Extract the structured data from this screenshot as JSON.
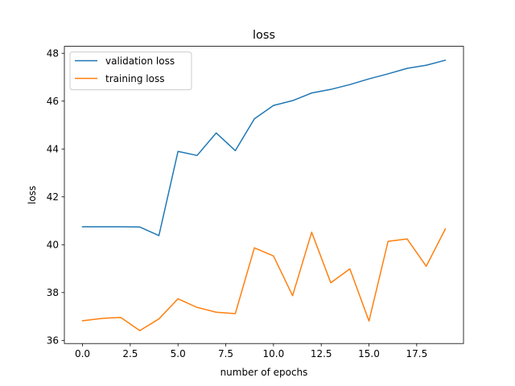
{
  "chart_data": {
    "type": "line",
    "title": "loss",
    "xlabel": "number of epochs",
    "ylabel": "loss",
    "x": [
      0,
      1,
      2,
      3,
      4,
      5,
      6,
      7,
      8,
      9,
      10,
      11,
      12,
      13,
      14,
      15,
      16,
      17,
      18,
      19
    ],
    "xlim": [
      -0.95,
      19.95
    ],
    "ylim": [
      35.87,
      48.29
    ],
    "xticks": [
      0,
      2.5,
      5,
      7.5,
      10,
      12.5,
      15,
      17.5
    ],
    "xtick_labels": [
      "0.0",
      "2.5",
      "5.0",
      "7.5",
      "10.0",
      "12.5",
      "15.0",
      "17.5"
    ],
    "yticks": [
      36,
      38,
      40,
      42,
      44,
      46,
      48
    ],
    "ytick_labels": [
      "36",
      "38",
      "40",
      "42",
      "44",
      "46",
      "48"
    ],
    "grid": false,
    "legend_position": "top-left",
    "series": [
      {
        "name": "validation loss",
        "color": "#1f77b4",
        "values": [
          40.75,
          40.75,
          40.75,
          40.74,
          40.38,
          43.9,
          43.73,
          44.67,
          43.93,
          45.26,
          45.82,
          46.02,
          46.34,
          46.49,
          46.69,
          46.93,
          47.14,
          47.37,
          47.5,
          47.71
        ]
      },
      {
        "name": "training loss",
        "color": "#ff7f0e",
        "values": [
          36.82,
          36.92,
          36.96,
          36.41,
          36.9,
          37.74,
          37.38,
          37.18,
          37.12,
          39.87,
          39.53,
          37.87,
          40.52,
          38.41,
          38.99,
          36.81,
          40.14,
          40.24,
          39.1,
          40.66
        ]
      }
    ]
  }
}
